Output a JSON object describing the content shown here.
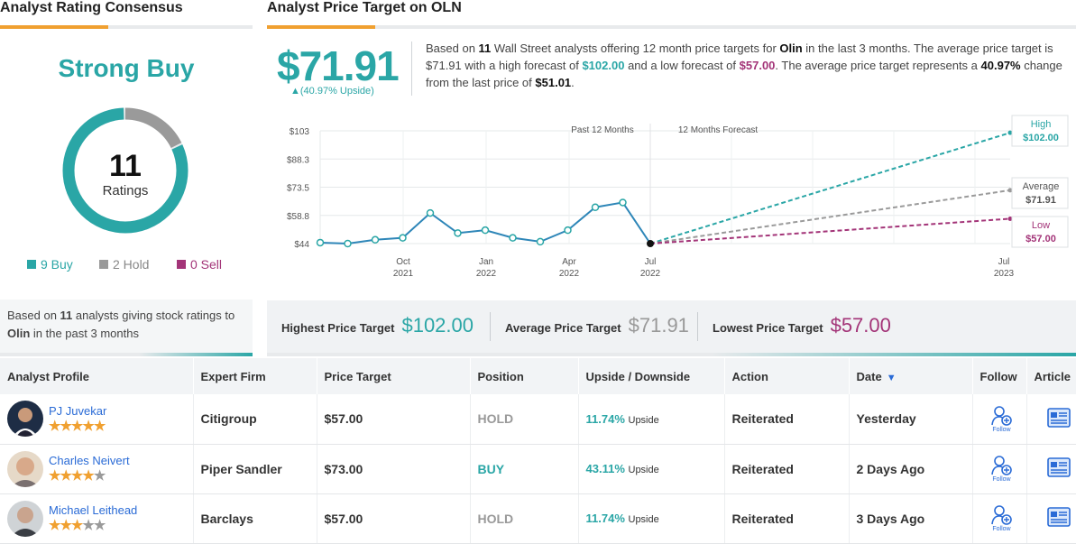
{
  "left_title": "Analyst Rating Consensus",
  "right_title": "Analyst Price Target on OLN",
  "consensus": {
    "rating": "Strong Buy",
    "count": "11",
    "count_label": "Ratings",
    "buy": 9,
    "hold": 2,
    "sell": 0,
    "buy_label": "9 Buy",
    "hold_label": "2 Hold",
    "sell_label": "0 Sell",
    "colors": {
      "buy": "#2aa6a6",
      "hold": "#9a9a9a",
      "sell": "#a33478"
    },
    "based_pre": "Based on ",
    "based_count": "11",
    "based_mid": " analysts giving stock ratings to ",
    "based_ticker": "Olin",
    "based_post": "  in the past 3 months"
  },
  "price_target": {
    "value": "$71.91",
    "upside": "▲(40.97% Upside)",
    "desc": {
      "p1": "Based on ",
      "n": "11",
      "p2": " Wall Street analysts offering 12 month price targets for ",
      "co": "Olin",
      "p3": " in the last 3 months. The average price target is $71.91 with a high forecast of ",
      "high": "$102.00",
      "p4": " and a low forecast of ",
      "low": "$57.00",
      "p5": ". The average price target represents a ",
      "pct": "40.97%",
      "p6": " change from the last price of ",
      "last": "$51.01",
      "p7": "."
    }
  },
  "chart_data": {
    "type": "line",
    "y_ticks": [
      "$103",
      "$88.3",
      "$73.5",
      "$58.8",
      "$44"
    ],
    "ylim": [
      44,
      103
    ],
    "x_ticks": [
      {
        "m": "Oct",
        "y": "2021"
      },
      {
        "m": "Jan",
        "y": "2022"
      },
      {
        "m": "Apr",
        "y": "2022"
      },
      {
        "m": "Jul",
        "y": "2022"
      },
      {
        "m": "Jul",
        "y": "2023"
      }
    ],
    "period_labels": [
      "Past 12 Months",
      "12 Months Forecast"
    ],
    "history": [
      44.5,
      44,
      46,
      47,
      60,
      49.5,
      51,
      47,
      45,
      51,
      63,
      65.5,
      44
    ],
    "forecast": {
      "high": 102,
      "average": 71.91,
      "low": 57
    },
    "forecast_labels": {
      "high_name": "High",
      "high_val": "$102.00",
      "avg_name": "Average",
      "avg_val": "$71.91",
      "low_name": "Low",
      "low_val": "$57.00"
    },
    "colors": {
      "history": "#2e86b8",
      "high": "#2aa6a6",
      "average": "#9a9a9a",
      "low": "#a33478"
    }
  },
  "summary": {
    "high_label": "Highest Price Target",
    "high_value": "$102.00",
    "avg_label": "Average Price Target",
    "avg_value": "$71.91",
    "low_label": "Lowest Price Target",
    "low_value": "$57.00"
  },
  "table": {
    "headers": [
      "Analyst Profile",
      "Expert Firm",
      "Price Target",
      "Position",
      "Upside / Downside",
      "Action",
      "Date",
      "Follow",
      "Article"
    ],
    "sort_indicator": "▼",
    "follow_label": "Follow",
    "rows": [
      {
        "name": "PJ Juvekar",
        "stars": 5,
        "firm": "Citigroup",
        "target": "$57.00",
        "position": "HOLD",
        "upside": "11.74%",
        "upside_word": "Upside",
        "action": "Reiterated",
        "date": "Yesterday"
      },
      {
        "name": "Charles Neivert",
        "stars": 4,
        "firm": "Piper Sandler",
        "target": "$73.00",
        "position": "BUY",
        "upside": "43.11%",
        "upside_word": "Upside",
        "action": "Reiterated",
        "date": "2 Days Ago"
      },
      {
        "name": "Michael Leithead",
        "stars": 3,
        "firm": "Barclays",
        "target": "$57.00",
        "position": "HOLD",
        "upside": "11.74%",
        "upside_word": "Upside",
        "action": "Reiterated",
        "date": "3 Days Ago"
      }
    ]
  }
}
